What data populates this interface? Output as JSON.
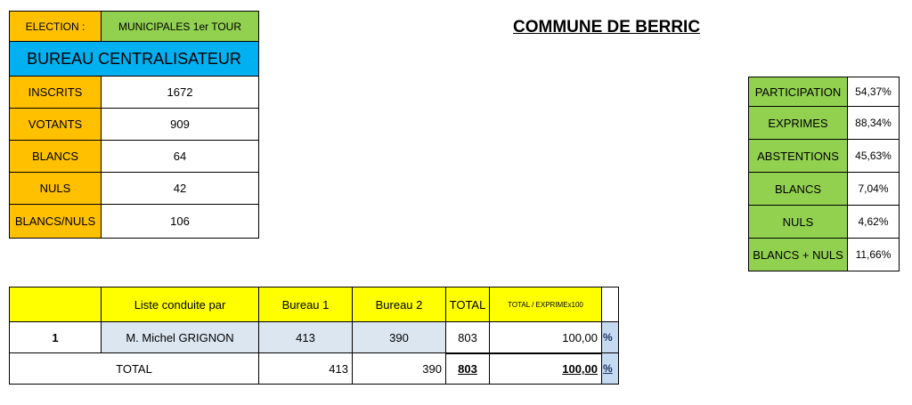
{
  "header": {
    "election_label": "ELECTION :",
    "election_value": "MUNICIPALES 1er TOUR",
    "bureau": "BUREAU CENTRALISATEUR",
    "commune": "COMMUNE  DE BERRIC"
  },
  "stats": [
    {
      "label": "INSCRITS",
      "value": "1672"
    },
    {
      "label": "VOTANTS",
      "value": "909"
    },
    {
      "label": "BLANCS",
      "value": "64"
    },
    {
      "label": "NULS",
      "value": "42"
    },
    {
      "label": "BLANCS/NULS",
      "value": "106"
    }
  ],
  "rates": [
    {
      "label": "PARTICIPATION",
      "value": "54,37%"
    },
    {
      "label": "EXPRIMES",
      "value": "88,34%"
    },
    {
      "label": "ABSTENTIONS",
      "value": "45,63%"
    },
    {
      "label": "BLANCS",
      "value": "7,04%"
    },
    {
      "label": "NULS",
      "value": "4,62%"
    },
    {
      "label": "BLANCS + NULS",
      "value": "11,66%"
    }
  ],
  "results": {
    "headers": {
      "num": "",
      "list": "Liste conduite par",
      "b1": "Bureau 1",
      "b2": "Bureau 2",
      "total": "TOTAL",
      "ratio": "TOTAL / EXPRIMEx100"
    },
    "row": {
      "num": "1",
      "name": "M. Michel GRIGNON",
      "b1": "413",
      "b2": "390",
      "total": "803",
      "ratio": "100,00",
      "pct": "%"
    },
    "total_row": {
      "label": "TOTAL",
      "b1": "413",
      "b2": "390",
      "total": "803",
      "ratio": "100,00",
      "pct": "%"
    }
  }
}
